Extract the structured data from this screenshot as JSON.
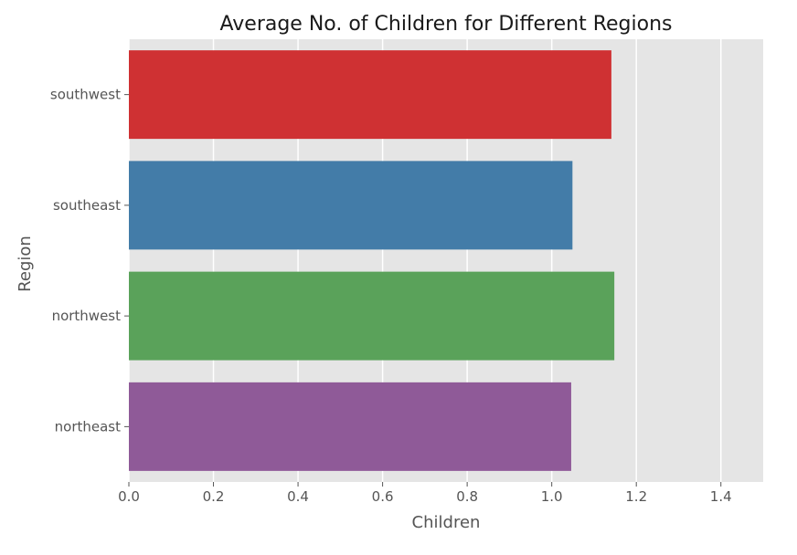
{
  "chart_data": {
    "type": "bar",
    "orientation": "horizontal",
    "title": "Average No. of Children for Different Regions",
    "xlabel": "Children",
    "ylabel": "Region",
    "categories": [
      "southwest",
      "southeast",
      "northwest",
      "northeast"
    ],
    "values": [
      1.141,
      1.049,
      1.148,
      1.046
    ],
    "colors": [
      "#cf3133",
      "#437ca8",
      "#5aa25a",
      "#8f5a98"
    ],
    "xlim": [
      0,
      1.5
    ],
    "xticks": [
      0.0,
      0.2,
      0.4,
      0.6,
      0.8,
      1.0,
      1.2,
      1.4
    ],
    "xtick_labels": [
      "0.0",
      "0.2",
      "0.4",
      "0.6",
      "0.8",
      "1.0",
      "1.2",
      "1.4"
    ],
    "grid": true,
    "background": "#e5e5e5",
    "grid_color": "#ffffff"
  }
}
